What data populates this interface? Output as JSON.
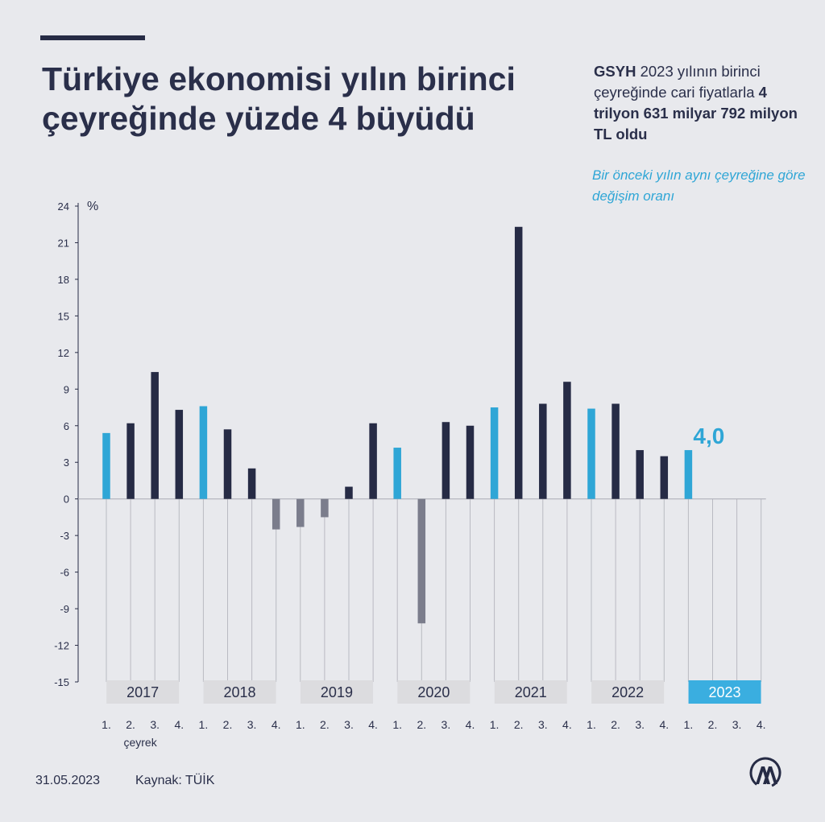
{
  "header": {
    "title": "Türkiye ekonomisi yılın birinci çeyreğinde yüzde 4 büyüdü"
  },
  "info": {
    "bold1": "GSYH",
    "text1": " 2023 yılının birinci çeyreğinde cari fiyatlarla ",
    "bold2": "4 trilyon 631 milyar 792 milyon TL oldu"
  },
  "note": "Bir önceki yılın aynı çeyreğine göre değişim oranı",
  "footer": {
    "date": "31.05.2023",
    "source": "Kaynak: TÜİK",
    "logo_text": "AA"
  },
  "colors": {
    "first_quarter": "#2fa6d6",
    "positive": "#262b45",
    "negative": "#7b7d8c",
    "year_band": "#dcdcdf",
    "highlight_year": "#3aaee0",
    "background": "#e8e9ed"
  },
  "chart_data": {
    "type": "bar",
    "ylabel": "%",
    "ylim": [
      -15,
      24
    ],
    "yticks": [
      24,
      21,
      18,
      15,
      12,
      9,
      6,
      3,
      0,
      -3,
      -6,
      -9,
      -12,
      -15
    ],
    "years": [
      "2017",
      "2018",
      "2019",
      "2020",
      "2021",
      "2022",
      "2023"
    ],
    "quarter_labels": [
      "1.",
      "2.",
      "3.",
      "4."
    ],
    "quarter_caption": "çeyrek",
    "highlight_year": "2023",
    "highlight_label": "4,0",
    "values": [
      5.4,
      6.2,
      10.4,
      7.3,
      7.6,
      5.7,
      2.5,
      -2.5,
      -2.3,
      -1.5,
      1.0,
      6.2,
      4.2,
      -10.2,
      6.3,
      6.0,
      7.5,
      22.3,
      7.8,
      9.6,
      7.4,
      7.8,
      4.0,
      3.5,
      4.0,
      null,
      null,
      null
    ]
  }
}
